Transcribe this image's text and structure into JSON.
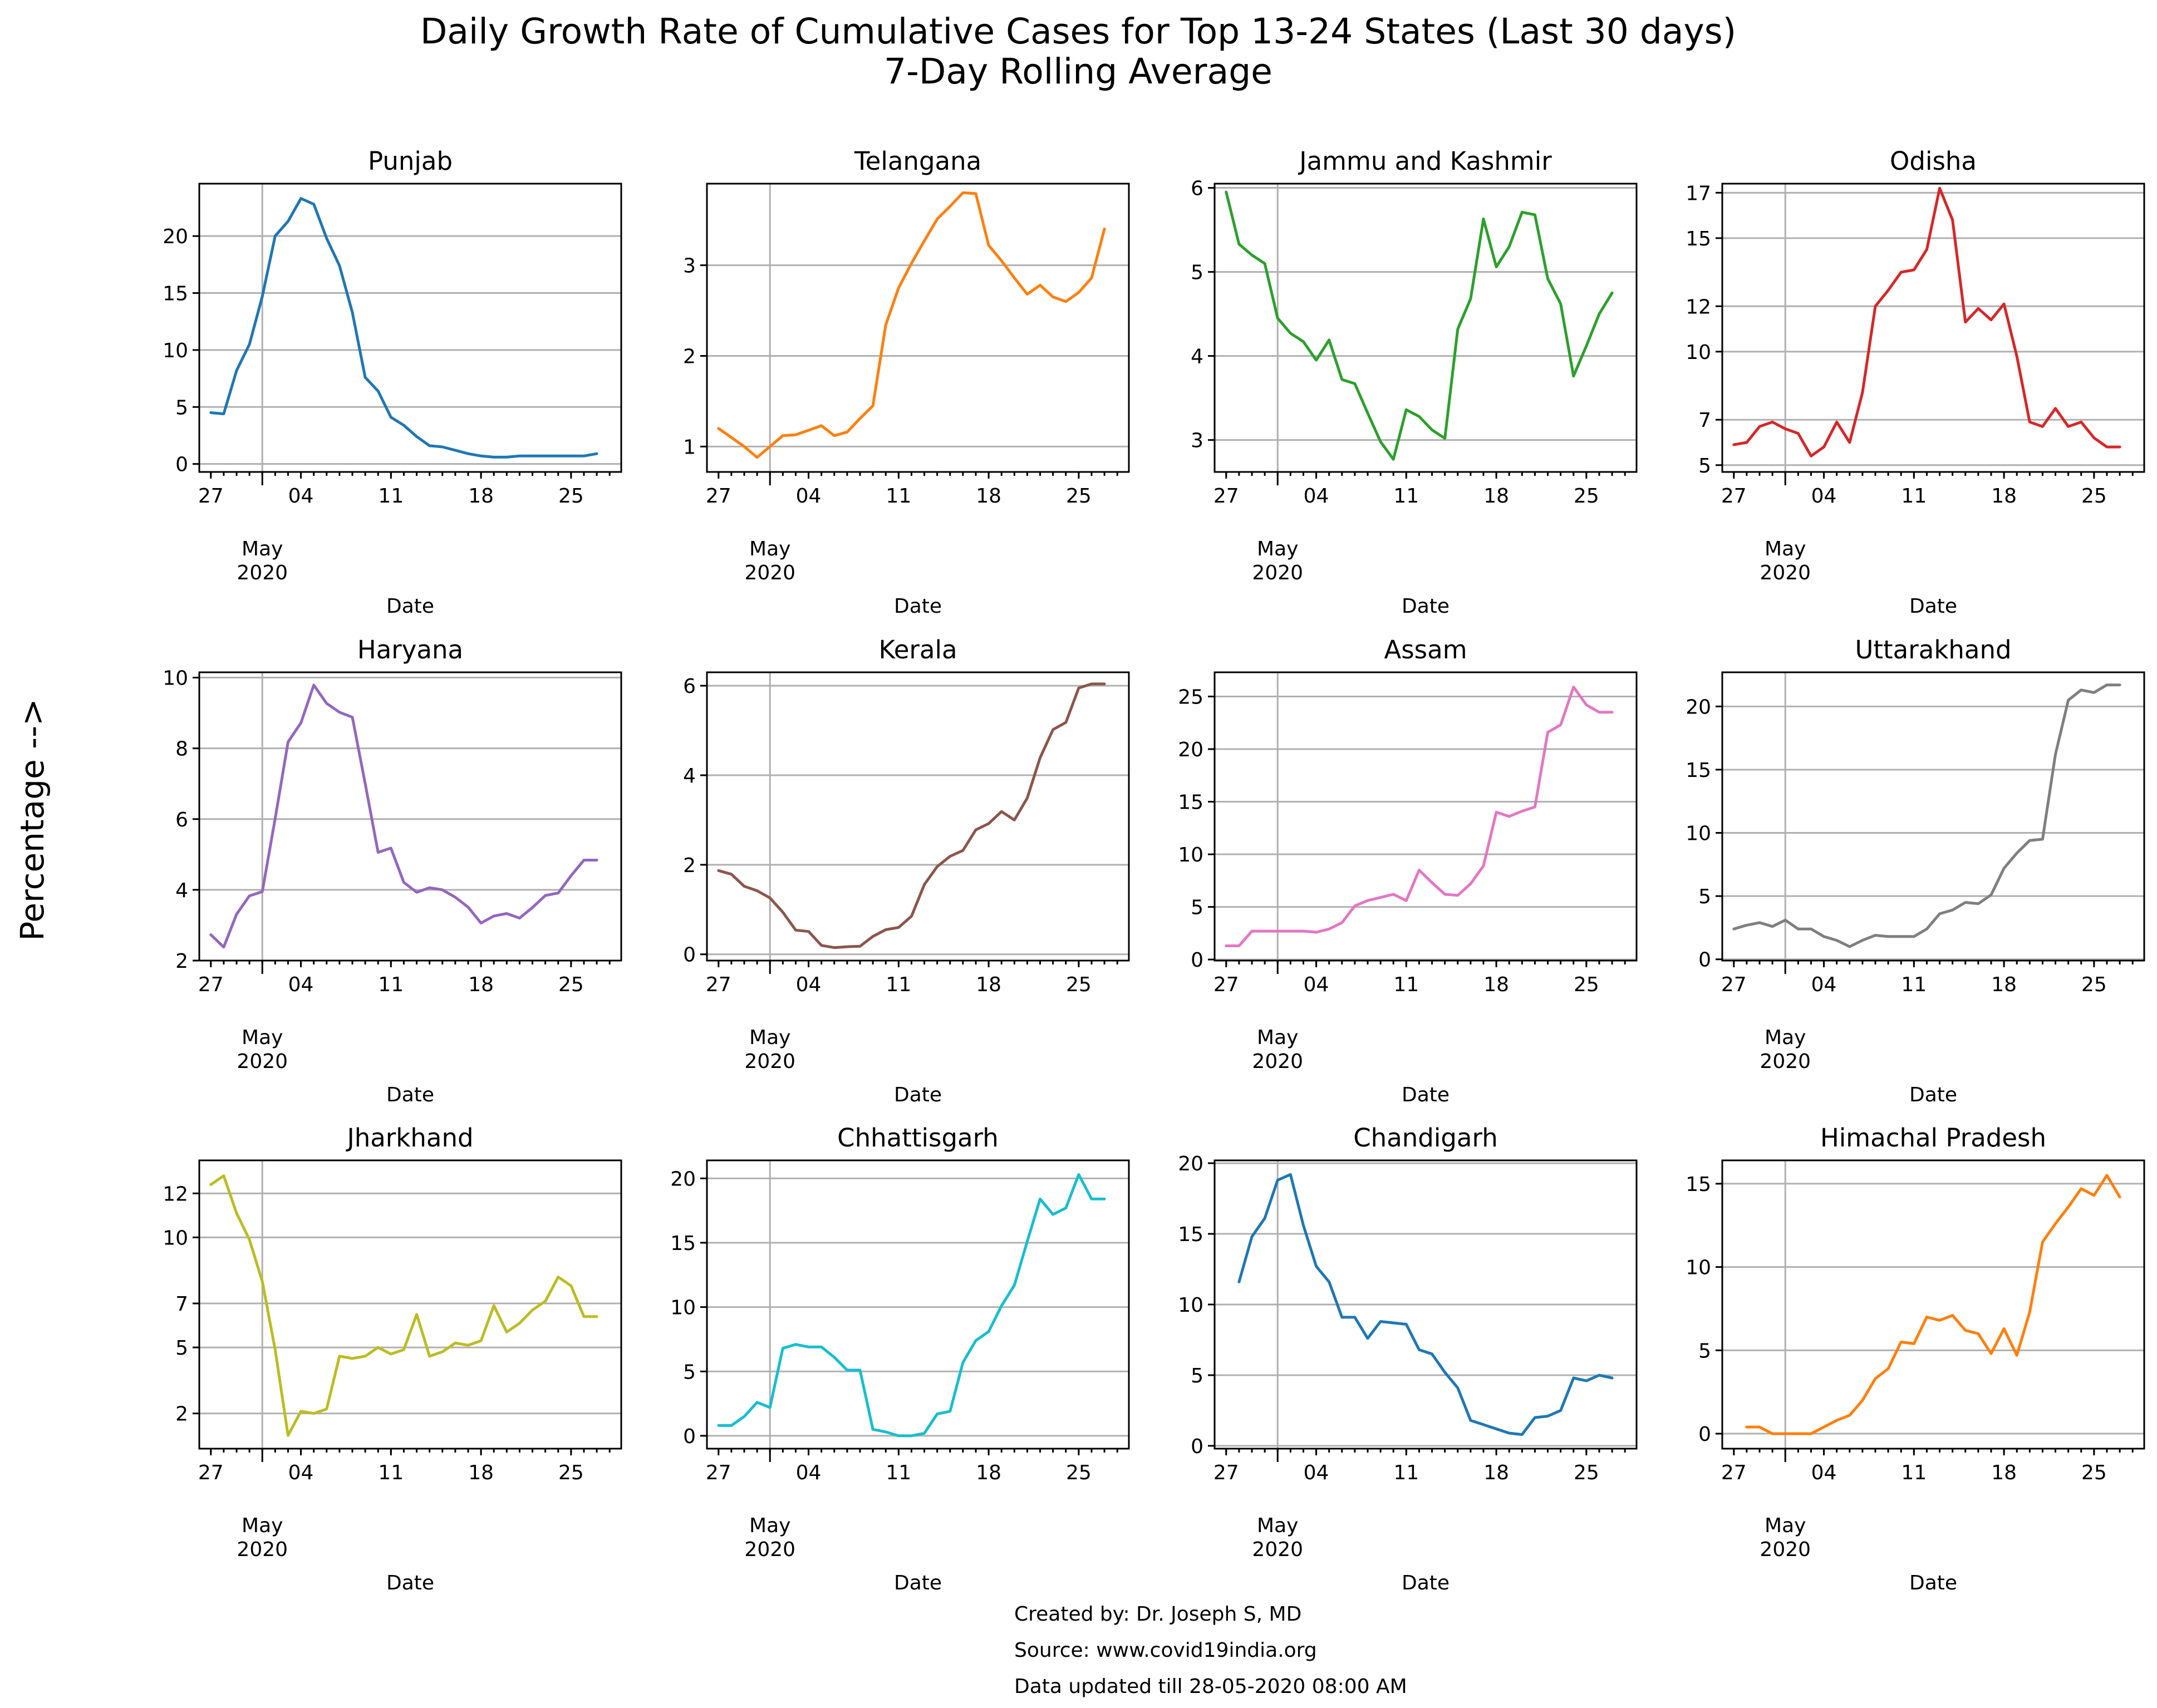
{
  "title_line1": "Daily Growth Rate of Cumulative Cases for Top 13-24 States (Last 30 days)",
  "title_line2": "7-Day Rolling Average",
  "ylabel": "Percentage -->",
  "footer": [
    "Created by: Dr. Joseph S, MD",
    "Source: www.covid19india.org",
    "Data updated till 28-05-2020 08:00 AM"
  ],
  "chart_data": [
    {
      "type": "line",
      "title": "Punjab",
      "color": "#1f77b4",
      "xlabel": "Date",
      "x_ticks": [
        "27",
        "04",
        "11",
        "18",
        "25"
      ],
      "x_secondary": [
        "May",
        "2020"
      ],
      "x": [
        0,
        1,
        2,
        3,
        4,
        5,
        6,
        7,
        8,
        9,
        10,
        11,
        12,
        13,
        14,
        15,
        16,
        17,
        18,
        19,
        20,
        21,
        22,
        23,
        24,
        25,
        26,
        27,
        28,
        29,
        30
      ],
      "xlim": [
        -0.9,
        31.9
      ],
      "ylim": [
        -0.7,
        24.6
      ],
      "y_ticks": [
        0,
        5,
        10,
        15,
        20
      ],
      "series": [
        {
          "values": [
            4.5,
            4.4,
            8.2,
            10.5,
            14.7,
            20.0,
            21.3,
            23.3,
            22.8,
            19.8,
            17.4,
            13.3,
            7.6,
            6.4,
            4.1,
            3.4,
            2.4,
            1.6,
            1.5,
            1.2,
            0.9,
            0.7,
            0.6,
            0.6,
            0.7,
            0.7,
            0.7,
            0.7,
            0.7,
            0.7,
            0.9
          ]
        }
      ]
    },
    {
      "type": "line",
      "title": "Telangana",
      "color": "#ff7f0e",
      "xlabel": "Date",
      "x_ticks": [
        "27",
        "04",
        "11",
        "18",
        "25"
      ],
      "x_secondary": [
        "May",
        "2020"
      ],
      "x": [
        0,
        1,
        2,
        3,
        4,
        5,
        6,
        7,
        8,
        9,
        10,
        11,
        12,
        13,
        14,
        15,
        16,
        17,
        18,
        19,
        20,
        21,
        22,
        23,
        24,
        25,
        26,
        27,
        28,
        29,
        30
      ],
      "xlim": [
        -0.9,
        31.9
      ],
      "ylim": [
        0.72,
        3.9
      ],
      "y_ticks": [
        1,
        2,
        3
      ],
      "series": [
        {
          "values": [
            1.2,
            1.1,
            1.0,
            0.88,
            1.0,
            1.12,
            1.13,
            1.18,
            1.23,
            1.12,
            1.16,
            1.31,
            1.45,
            2.34,
            2.75,
            3.02,
            3.27,
            3.51,
            3.65,
            3.8,
            3.79,
            3.22,
            3.05,
            2.86,
            2.68,
            2.78,
            2.65,
            2.6,
            2.7,
            2.86,
            3.4
          ]
        }
      ]
    },
    {
      "type": "line",
      "title": "Jammu and Kashmir",
      "color": "#2ca02c",
      "xlabel": "Date",
      "x_ticks": [
        "27",
        "04",
        "11",
        "18",
        "25"
      ],
      "x_secondary": [
        "May",
        "2020"
      ],
      "x": [
        0,
        1,
        2,
        3,
        4,
        5,
        6,
        7,
        8,
        9,
        10,
        11,
        12,
        13,
        14,
        15,
        16,
        17,
        18,
        19,
        20,
        21,
        22,
        23,
        24,
        25,
        26,
        27,
        28,
        29,
        30
      ],
      "xlim": [
        -0.9,
        31.9
      ],
      "ylim": [
        2.62,
        6.05
      ],
      "y_ticks": [
        3,
        4,
        5,
        6
      ],
      "series": [
        {
          "values": [
            5.95,
            5.33,
            5.2,
            5.1,
            4.45,
            4.27,
            4.17,
            3.95,
            4.19,
            3.72,
            3.67,
            3.32,
            2.98,
            2.77,
            3.36,
            3.28,
            3.12,
            3.02,
            4.32,
            4.68,
            5.63,
            5.06,
            5.3,
            5.71,
            5.68,
            4.92,
            4.62,
            3.76,
            4.12,
            4.5,
            4.75
          ]
        }
      ]
    },
    {
      "type": "line",
      "title": "Odisha",
      "color": "#d62728",
      "xlabel": "Date",
      "x_ticks": [
        "27",
        "04",
        "11",
        "18",
        "25"
      ],
      "x_secondary": [
        "May",
        "2020"
      ],
      "x": [
        0,
        1,
        2,
        3,
        4,
        5,
        6,
        7,
        8,
        9,
        10,
        11,
        12,
        13,
        14,
        15,
        16,
        17,
        18,
        19,
        20,
        21,
        22,
        23,
        24,
        25,
        26,
        27,
        28,
        29,
        30
      ],
      "xlim": [
        -0.9,
        31.9
      ],
      "ylim": [
        4.7,
        17.4
      ],
      "y_ticks": [
        5,
        7,
        10,
        12,
        15,
        17
      ],
      "series": [
        {
          "values": [
            5.9,
            6.0,
            6.7,
            6.9,
            6.6,
            6.4,
            5.4,
            5.8,
            6.9,
            6.0,
            8.2,
            12.0,
            12.7,
            13.5,
            13.6,
            14.5,
            17.2,
            15.8,
            11.3,
            11.9,
            11.4,
            12.1,
            9.8,
            6.9,
            6.7,
            7.5,
            6.7,
            6.9,
            6.2,
            5.8,
            5.8
          ]
        }
      ]
    },
    {
      "type": "line",
      "title": "Haryana",
      "color": "#9467bd",
      "xlabel": "Date",
      "x_ticks": [
        "27",
        "04",
        "11",
        "18",
        "25"
      ],
      "x_secondary": [
        "May",
        "2020"
      ],
      "x": [
        0,
        1,
        2,
        3,
        4,
        5,
        6,
        7,
        8,
        9,
        10,
        11,
        12,
        13,
        14,
        15,
        16,
        17,
        18,
        19,
        20,
        21,
        22,
        23,
        24,
        25,
        26,
        27,
        28,
        29,
        30
      ],
      "xlim": [
        -0.9,
        31.9
      ],
      "ylim": [
        2.0,
        10.15
      ],
      "y_ticks": [
        2,
        4,
        6,
        8,
        10
      ],
      "series": [
        {
          "values": [
            2.73,
            2.38,
            3.31,
            3.83,
            3.95,
            6.01,
            8.18,
            8.72,
            9.79,
            9.27,
            9.02,
            8.88,
            7.0,
            5.06,
            5.18,
            4.21,
            3.93,
            4.06,
            4.0,
            3.79,
            3.51,
            3.06,
            3.26,
            3.33,
            3.2,
            3.5,
            3.84,
            3.91,
            4.4,
            4.84,
            4.84
          ]
        }
      ]
    },
    {
      "type": "line",
      "title": "Kerala",
      "color": "#8c564b",
      "xlabel": "Date",
      "x_ticks": [
        "27",
        "04",
        "11",
        "18",
        "25"
      ],
      "x_secondary": [
        "May",
        "2020"
      ],
      "x": [
        0,
        1,
        2,
        3,
        4,
        5,
        6,
        7,
        8,
        9,
        10,
        11,
        12,
        13,
        14,
        15,
        16,
        17,
        18,
        19,
        20,
        21,
        22,
        23,
        24,
        25,
        26,
        27,
        28,
        29,
        30
      ],
      "xlim": [
        -0.9,
        31.9
      ],
      "ylim": [
        -0.14,
        6.3
      ],
      "y_ticks": [
        0,
        2,
        4,
        6
      ],
      "series": [
        {
          "values": [
            1.87,
            1.79,
            1.52,
            1.42,
            1.26,
            0.94,
            0.54,
            0.51,
            0.2,
            0.15,
            0.17,
            0.18,
            0.4,
            0.55,
            0.6,
            0.85,
            1.56,
            1.96,
            2.19,
            2.32,
            2.78,
            2.92,
            3.19,
            3.0,
            3.49,
            4.39,
            5.02,
            5.18,
            5.95,
            6.04,
            6.04
          ]
        }
      ]
    },
    {
      "type": "line",
      "title": "Assam",
      "color": "#e377c2",
      "xlabel": "Date",
      "x_ticks": [
        "27",
        "04",
        "11",
        "18",
        "25"
      ],
      "x_secondary": [
        "May",
        "2020"
      ],
      "x": [
        0,
        1,
        2,
        3,
        4,
        5,
        6,
        7,
        8,
        9,
        10,
        11,
        12,
        13,
        14,
        15,
        16,
        17,
        18,
        19,
        20,
        21,
        22,
        23,
        24,
        25,
        26,
        27,
        28,
        29,
        30
      ],
      "xlim": [
        -0.9,
        31.9
      ],
      "ylim": [
        -0.1,
        27.3
      ],
      "y_ticks": [
        0,
        5,
        10,
        15,
        20,
        25
      ],
      "series": [
        {
          "values": [
            1.3,
            1.3,
            2.7,
            2.7,
            2.7,
            2.7,
            2.7,
            2.6,
            2.9,
            3.5,
            5.1,
            5.6,
            5.9,
            6.2,
            5.6,
            8.5,
            7.3,
            6.2,
            6.1,
            7.2,
            8.9,
            14.0,
            13.6,
            14.1,
            14.5,
            21.6,
            22.3,
            25.9,
            24.2,
            23.5,
            23.5
          ]
        }
      ]
    },
    {
      "type": "line",
      "title": "Uttarakhand",
      "color": "#7f7f7f",
      "xlabel": "Date",
      "x_ticks": [
        "27",
        "04",
        "11",
        "18",
        "25"
      ],
      "x_secondary": [
        "May",
        "2020"
      ],
      "x": [
        0,
        1,
        2,
        3,
        4,
        5,
        6,
        7,
        8,
        9,
        10,
        11,
        12,
        13,
        14,
        15,
        16,
        17,
        18,
        19,
        20,
        21,
        22,
        23,
        24,
        25,
        26,
        27,
        28,
        29,
        30
      ],
      "xlim": [
        -0.9,
        31.9
      ],
      "ylim": [
        -0.1,
        22.7
      ],
      "y_ticks": [
        0,
        5,
        10,
        15,
        20
      ],
      "series": [
        {
          "values": [
            2.4,
            2.7,
            2.9,
            2.6,
            3.1,
            2.4,
            2.4,
            1.8,
            1.5,
            1.0,
            1.5,
            1.9,
            1.8,
            1.8,
            1.8,
            2.4,
            3.6,
            3.9,
            4.5,
            4.4,
            5.1,
            7.2,
            8.4,
            9.4,
            9.5,
            16.2,
            20.5,
            21.3,
            21.1,
            21.7,
            21.7
          ]
        }
      ]
    },
    {
      "type": "line",
      "title": "Jharkhand",
      "color": "#bcbd22",
      "xlabel": "Date",
      "x_ticks": [
        "27",
        "04",
        "11",
        "18",
        "25"
      ],
      "x_secondary": [
        "May",
        "2020"
      ],
      "x": [
        0,
        1,
        2,
        3,
        4,
        5,
        6,
        7,
        8,
        9,
        10,
        11,
        12,
        13,
        14,
        15,
        16,
        17,
        18,
        19,
        20,
        21,
        22,
        23,
        24,
        25,
        26,
        27,
        28,
        29,
        30
      ],
      "xlim": [
        -0.9,
        31.9
      ],
      "ylim": [
        0.4,
        13.5
      ],
      "y_ticks": [
        2,
        5,
        7,
        10,
        12
      ],
      "series": [
        {
          "values": [
            12.4,
            12.8,
            11.1,
            9.9,
            8.0,
            4.9,
            1.0,
            2.1,
            2.0,
            2.2,
            4.6,
            4.5,
            4.6,
            5.0,
            4.7,
            4.9,
            6.5,
            4.6,
            4.8,
            5.2,
            5.1,
            5.3,
            6.9,
            5.7,
            6.1,
            6.7,
            7.1,
            8.2,
            7.8,
            6.4,
            6.4
          ]
        }
      ]
    },
    {
      "type": "line",
      "title": "Chhattisgarh",
      "color": "#17becf",
      "xlabel": "Date",
      "x_ticks": [
        "27",
        "04",
        "11",
        "18",
        "25"
      ],
      "x_secondary": [
        "May",
        "2020"
      ],
      "x": [
        0,
        1,
        2,
        3,
        4,
        5,
        6,
        7,
        8,
        9,
        10,
        11,
        12,
        13,
        14,
        15,
        16,
        17,
        18,
        19,
        20,
        21,
        22,
        23,
        24,
        25,
        26,
        27,
        28,
        29,
        30
      ],
      "xlim": [
        -0.9,
        31.9
      ],
      "ylim": [
        -1.0,
        21.4
      ],
      "y_ticks": [
        0,
        5,
        10,
        15,
        20
      ],
      "series": [
        {
          "values": [
            0.8,
            0.8,
            1.5,
            2.6,
            2.2,
            6.8,
            7.1,
            6.9,
            6.9,
            6.1,
            5.1,
            5.1,
            0.5,
            0.3,
            0.0,
            0.0,
            0.2,
            1.7,
            1.9,
            5.7,
            7.4,
            8.1,
            10.1,
            11.7,
            15.1,
            18.4,
            17.2,
            17.7,
            20.3,
            18.4,
            18.4
          ]
        }
      ]
    },
    {
      "type": "line",
      "title": "Chandigarh",
      "color": "#1f77b4",
      "xlabel": "Date",
      "x_ticks": [
        "27",
        "04",
        "11",
        "18",
        "25"
      ],
      "x_secondary": [
        "May",
        "2020"
      ],
      "x": [
        1,
        2,
        3,
        4,
        5,
        6,
        7,
        8,
        9,
        10,
        11,
        12,
        13,
        14,
        15,
        16,
        17,
        18,
        19,
        20,
        21,
        22,
        23,
        24,
        25,
        26,
        27,
        28,
        29,
        30
      ],
      "xlim": [
        -0.9,
        31.9
      ],
      "ylim": [
        -0.2,
        20.2
      ],
      "y_ticks": [
        0,
        5,
        10,
        15,
        20
      ],
      "series": [
        {
          "values": [
            11.6,
            14.8,
            16.1,
            18.8,
            19.2,
            15.6,
            12.7,
            11.6,
            9.1,
            9.1,
            7.6,
            8.8,
            8.7,
            8.6,
            6.8,
            6.5,
            5.2,
            4.1,
            1.8,
            1.5,
            1.2,
            0.9,
            0.8,
            2.0,
            2.1,
            2.5,
            4.8,
            4.6,
            5.0,
            4.8
          ]
        }
      ]
    },
    {
      "type": "line",
      "title": "Himachal Pradesh",
      "color": "#ff7f0e",
      "xlabel": "Date",
      "x_ticks": [
        "27",
        "04",
        "11",
        "18",
        "25"
      ],
      "x_secondary": [
        "May",
        "2020"
      ],
      "x": [
        1,
        2,
        3,
        4,
        5,
        6,
        7,
        8,
        9,
        10,
        11,
        12,
        13,
        14,
        15,
        16,
        17,
        18,
        19,
        20,
        21,
        22,
        23,
        24,
        25,
        26,
        27,
        28,
        29,
        30
      ],
      "xlim": [
        -0.9,
        31.9
      ],
      "ylim": [
        -0.9,
        16.4
      ],
      "y_ticks": [
        0,
        5,
        10,
        15
      ],
      "series": [
        {
          "values": [
            0.4,
            0.4,
            0.0,
            0.0,
            0.0,
            0.0,
            0.4,
            0.8,
            1.1,
            2.0,
            3.3,
            3.9,
            5.5,
            5.4,
            7.0,
            6.8,
            7.1,
            6.2,
            6.0,
            4.8,
            6.3,
            4.7,
            7.3,
            11.5,
            12.6,
            13.6,
            14.7,
            14.3,
            15.5,
            14.2
          ]
        }
      ]
    }
  ]
}
